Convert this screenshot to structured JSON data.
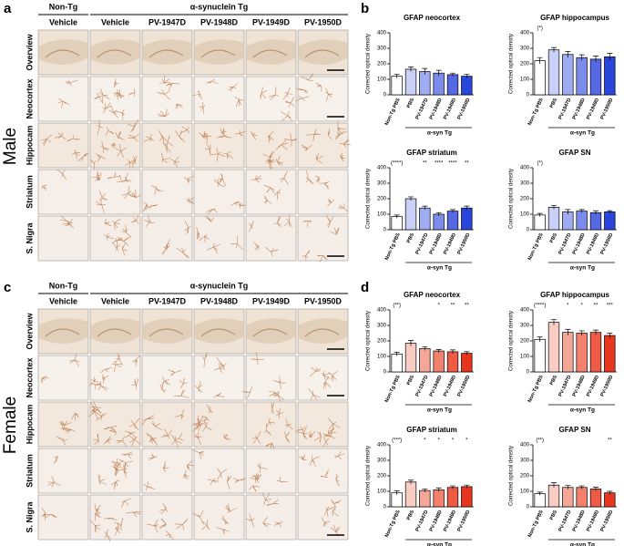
{
  "figure": {
    "panels": [
      {
        "label": "a",
        "sex": "Male",
        "group_headers": [
          "Non-Tg",
          "α-synuclein Tg"
        ],
        "columns": [
          "Vehicle",
          "Vehicle",
          "PV-1947D",
          "PV-1948D",
          "PV-1949D",
          "PV-1950D"
        ],
        "rows": [
          "Overview",
          "Neocortex",
          "Hippocam",
          "Striatum",
          "S. Nigra"
        ]
      },
      {
        "label": "c",
        "sex": "Female",
        "group_headers": [
          "Non-Tg",
          "α-synuclein Tg"
        ],
        "columns": [
          "Vehicle",
          "Vehicle",
          "PV-1947D",
          "PV-1948D",
          "PV-1949D",
          "PV-1950D"
        ],
        "rows": [
          "Overview",
          "Neocortex",
          "Hippocam",
          "Striatum",
          "S. Nigra"
        ]
      }
    ],
    "chart_panel_labels": [
      "b",
      "d"
    ]
  },
  "chart_data": [
    {
      "type": "bar",
      "title": "GFAP neocortex",
      "ylabel": "Corrected optical density",
      "group_label": "α-syn Tg",
      "categories": [
        "Non-Tg PBS",
        "PBS",
        "PV-1947D",
        "PV-1948D",
        "PV-1949D",
        "PV-1950D"
      ],
      "values": [
        120,
        165,
        150,
        140,
        130,
        120
      ],
      "errors": [
        12,
        15,
        20,
        18,
        10,
        12
      ],
      "annotations": [
        null,
        null,
        null,
        null,
        null,
        null
      ],
      "colors": [
        "#ffffff",
        "#c8d0f7",
        "#a0acf1",
        "#7c8cec",
        "#5668e3",
        "#2a45db"
      ],
      "ylim": [
        0,
        400
      ],
      "yticks": [
        0,
        100,
        200,
        300,
        400
      ]
    },
    {
      "type": "bar",
      "title": "GFAP hippocampus",
      "ylabel": "Corrected optical density",
      "group_label": "α-syn Tg",
      "categories": [
        "Non-Tg PBS",
        "PBS",
        "PV-1947D",
        "PV-1948D",
        "PV-1949D",
        "PV-1950D"
      ],
      "values": [
        220,
        290,
        260,
        240,
        230,
        245
      ],
      "errors": [
        20,
        15,
        20,
        18,
        20,
        22
      ],
      "annotations": [
        "(*)",
        null,
        null,
        null,
        null,
        null
      ],
      "colors": [
        "#ffffff",
        "#c8d0f7",
        "#a0acf1",
        "#7c8cec",
        "#5668e3",
        "#2a45db"
      ],
      "ylim": [
        0,
        400
      ],
      "yticks": [
        0,
        100,
        200,
        300,
        400
      ]
    },
    {
      "type": "bar",
      "title": "GFAP striatum",
      "ylabel": "Corrected optical density",
      "group_label": "α-syn Tg",
      "categories": [
        "Non-Tg PBS",
        "PBS",
        "PV-1947D",
        "PV-1948D",
        "PV-1949D",
        "PV-1950D"
      ],
      "values": [
        85,
        200,
        140,
        100,
        120,
        140
      ],
      "errors": [
        10,
        12,
        12,
        10,
        10,
        12
      ],
      "annotations": [
        "(****)",
        null,
        "**",
        "****",
        "****",
        "**"
      ],
      "colors": [
        "#ffffff",
        "#c8d0f7",
        "#a0acf1",
        "#7c8cec",
        "#5668e3",
        "#2a45db"
      ],
      "ylim": [
        0,
        400
      ],
      "yticks": [
        0,
        100,
        200,
        300,
        400
      ]
    },
    {
      "type": "bar",
      "title": "GFAP SN",
      "ylabel": "Corrected optical density",
      "group_label": "α-syn Tg",
      "categories": [
        "Non-Tg PBS",
        "PBS",
        "PV-1947D",
        "PV-1948D",
        "PV-1949D",
        "PV-1950D"
      ],
      "values": [
        95,
        145,
        115,
        120,
        110,
        115
      ],
      "errors": [
        10,
        12,
        15,
        10,
        12,
        8
      ],
      "annotations": [
        "(*)",
        null,
        null,
        null,
        null,
        null
      ],
      "colors": [
        "#ffffff",
        "#c8d0f7",
        "#a0acf1",
        "#7c8cec",
        "#5668e3",
        "#2a45db"
      ],
      "ylim": [
        0,
        400
      ],
      "yticks": [
        0,
        100,
        200,
        300,
        400
      ]
    },
    {
      "type": "bar",
      "title": "GFAP neocortex",
      "ylabel": "Corrected optical density",
      "group_label": "α-syn Tg",
      "categories": [
        "Non-Tg PBS",
        "PBS",
        "PV-1947D",
        "PV-1948D",
        "PV-1949D",
        "PV-1950D"
      ],
      "values": [
        115,
        185,
        150,
        135,
        130,
        120
      ],
      "errors": [
        12,
        18,
        12,
        10,
        12,
        10
      ],
      "annotations": [
        "(**)",
        null,
        null,
        "*",
        "**",
        "**"
      ],
      "colors": [
        "#ffffff",
        "#f9cdc3",
        "#f5a797",
        "#f2806c",
        "#ee5a44",
        "#e8361e"
      ],
      "ylim": [
        0,
        400
      ],
      "yticks": [
        0,
        100,
        200,
        300,
        400
      ]
    },
    {
      "type": "bar",
      "title": "GFAP hippocampus",
      "ylabel": "Corrected optical density",
      "group_label": "α-syn Tg",
      "categories": [
        "Non-Tg PBS",
        "PBS",
        "PV-1947D",
        "PV-1948D",
        "PV-1949D",
        "PV-1950D"
      ],
      "values": [
        210,
        320,
        255,
        250,
        255,
        235
      ],
      "errors": [
        15,
        18,
        20,
        15,
        15,
        15
      ],
      "annotations": [
        "(****)",
        null,
        "*",
        "*",
        "**",
        "***"
      ],
      "colors": [
        "#ffffff",
        "#f9cdc3",
        "#f5a797",
        "#f2806c",
        "#ee5a44",
        "#e8361e"
      ],
      "ylim": [
        0,
        400
      ],
      "yticks": [
        0,
        100,
        200,
        300,
        400
      ]
    },
    {
      "type": "bar",
      "title": "GFAP striatum",
      "ylabel": "Corrected optical density",
      "group_label": "α-syn Tg",
      "categories": [
        "Non-Tg PBS",
        "PBS",
        "PV-1947D",
        "PV-1948D",
        "PV-1949D",
        "PV-1950D"
      ],
      "values": [
        90,
        160,
        105,
        110,
        125,
        130
      ],
      "errors": [
        12,
        12,
        10,
        12,
        10,
        10
      ],
      "annotations": [
        "(***)",
        null,
        "*",
        "*",
        "*",
        "*"
      ],
      "colors": [
        "#ffffff",
        "#f9cdc3",
        "#f5a797",
        "#f2806c",
        "#ee5a44",
        "#e8361e"
      ],
      "ylim": [
        0,
        400
      ],
      "yticks": [
        0,
        100,
        200,
        300,
        400
      ]
    },
    {
      "type": "bar",
      "title": "GFAP SN",
      "ylabel": "Corrected optical density",
      "group_label": "α-syn Tg",
      "categories": [
        "Non-Tg PBS",
        "PBS",
        "PV-1947D",
        "PV-1948D",
        "PV-1949D",
        "PV-1950D"
      ],
      "values": [
        85,
        140,
        125,
        125,
        115,
        90
      ],
      "errors": [
        10,
        15,
        12,
        10,
        12,
        10
      ],
      "annotations": [
        "(**)",
        null,
        null,
        null,
        null,
        "**"
      ],
      "colors": [
        "#ffffff",
        "#f9cdc3",
        "#f5a797",
        "#f2806c",
        "#ee5a44",
        "#e8361e"
      ],
      "ylim": [
        0,
        400
      ],
      "yticks": [
        0,
        100,
        200,
        300,
        400
      ]
    }
  ]
}
